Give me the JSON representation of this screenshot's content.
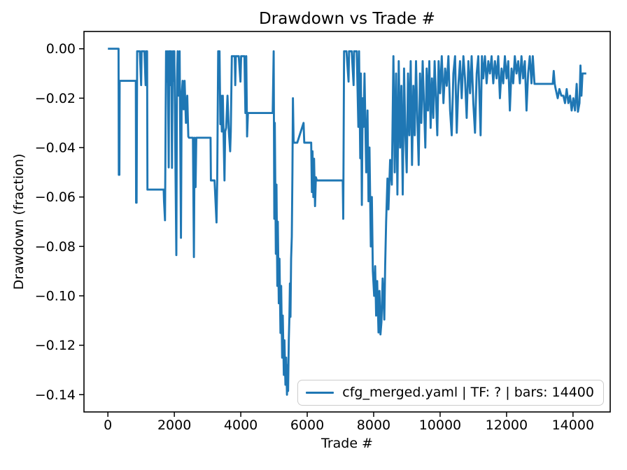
{
  "window": {
    "background": "#ffffff"
  },
  "chart_data": {
    "type": "line",
    "title": "Drawdown vs Trade #",
    "xlabel": "Trade #",
    "ylabel": "Drawdown (fraction)",
    "grid": false,
    "line_color": "#1f77b4",
    "axis_color": "#000000",
    "legend": {
      "position": "lower right",
      "entries": [
        {
          "label": "cfg_merged.yaml | TF: ? | bars: 14400",
          "color": "#1f77b4"
        }
      ]
    },
    "xlim": [
      -720,
      15120
    ],
    "ylim": [
      -0.147,
      0.007
    ],
    "xticks": [
      {
        "value": 0,
        "label": "0"
      },
      {
        "value": 2000,
        "label": "2000"
      },
      {
        "value": 4000,
        "label": "4000"
      },
      {
        "value": 6000,
        "label": "6000"
      },
      {
        "value": 8000,
        "label": "8000"
      },
      {
        "value": 10000,
        "label": "10000"
      },
      {
        "value": 12000,
        "label": "12000"
      },
      {
        "value": 14000,
        "label": "14000"
      }
    ],
    "yticks": [
      {
        "value": 0.0,
        "label": "0.00"
      },
      {
        "value": -0.02,
        "label": "−0.02"
      },
      {
        "value": -0.04,
        "label": "−0.04"
      },
      {
        "value": -0.06,
        "label": "−0.06"
      },
      {
        "value": -0.08,
        "label": "−0.08"
      },
      {
        "value": -0.1,
        "label": "−0.10"
      },
      {
        "value": -0.12,
        "label": "−0.12"
      },
      {
        "value": -0.14,
        "label": "−0.14"
      }
    ],
    "series": [
      {
        "name": "cfg_merged.yaml | TF: ? | bars: 14400",
        "color": "#1f77b4",
        "points": [
          [
            0,
            0
          ],
          [
            320,
            0
          ],
          [
            330,
            -0.051
          ],
          [
            345,
            -0.051
          ],
          [
            355,
            -0.013
          ],
          [
            600,
            -0.013
          ],
          [
            840,
            -0.013
          ],
          [
            850,
            -0.0623
          ],
          [
            865,
            -0.0623
          ],
          [
            880,
            -0.001
          ],
          [
            960,
            -0.001
          ],
          [
            1000,
            -0.0147
          ],
          [
            1015,
            -0.001
          ],
          [
            1100,
            -0.001
          ],
          [
            1135,
            -0.0147
          ],
          [
            1150,
            -0.001
          ],
          [
            1180,
            -0.001
          ],
          [
            1190,
            -0.057
          ],
          [
            1450,
            -0.057
          ],
          [
            1680,
            -0.057
          ],
          [
            1690,
            -0.0617
          ],
          [
            1720,
            -0.0694
          ],
          [
            1750,
            -0.001
          ],
          [
            1780,
            -0.0133
          ],
          [
            1800,
            -0.001
          ],
          [
            1830,
            -0.048
          ],
          [
            1845,
            -0.001
          ],
          [
            1870,
            -0.001
          ],
          [
            1890,
            -0.0147
          ],
          [
            1905,
            -0.001
          ],
          [
            1930,
            -0.0482
          ],
          [
            1945,
            -0.013
          ],
          [
            1960,
            -0.001
          ],
          [
            1980,
            -0.013
          ],
          [
            2000,
            -0.001
          ],
          [
            2060,
            -0.0835
          ],
          [
            2080,
            -0.013
          ],
          [
            2100,
            -0.001
          ],
          [
            2130,
            -0.019
          ],
          [
            2160,
            -0.001
          ],
          [
            2200,
            -0.0765
          ],
          [
            2220,
            -0.019
          ],
          [
            2250,
            -0.013
          ],
          [
            2280,
            -0.0245
          ],
          [
            2310,
            -0.013
          ],
          [
            2350,
            -0.03
          ],
          [
            2390,
            -0.019
          ],
          [
            2420,
            -0.0355
          ],
          [
            2440,
            -0.036
          ],
          [
            2520,
            -0.036
          ],
          [
            2560,
            -0.036
          ],
          [
            2590,
            -0.0843
          ],
          [
            2610,
            -0.036
          ],
          [
            2640,
            -0.056
          ],
          [
            2660,
            -0.036
          ],
          [
            2750,
            -0.036
          ],
          [
            3090,
            -0.036
          ],
          [
            3100,
            -0.0533
          ],
          [
            3210,
            -0.0533
          ],
          [
            3270,
            -0.0703
          ],
          [
            3290,
            -0.0533
          ],
          [
            3320,
            -0.001
          ],
          [
            3360,
            -0.001
          ],
          [
            3385,
            -0.0305
          ],
          [
            3405,
            -0.019
          ],
          [
            3430,
            -0.0335
          ],
          [
            3460,
            -0.019
          ],
          [
            3510,
            -0.0533
          ],
          [
            3530,
            -0.0335
          ],
          [
            3560,
            -0.032
          ],
          [
            3600,
            -0.019
          ],
          [
            3640,
            -0.0335
          ],
          [
            3680,
            -0.0415
          ],
          [
            3700,
            -0.0335
          ],
          [
            3730,
            -0.003
          ],
          [
            3820,
            -0.003
          ],
          [
            3835,
            -0.0147
          ],
          [
            3850,
            -0.003
          ],
          [
            3940,
            -0.003
          ],
          [
            3990,
            -0.0133
          ],
          [
            4010,
            -0.003
          ],
          [
            4080,
            -0.003
          ],
          [
            4110,
            -0.003
          ],
          [
            4140,
            -0.026
          ],
          [
            4165,
            -0.003
          ],
          [
            4190,
            -0.0355
          ],
          [
            4215,
            -0.026
          ],
          [
            4400,
            -0.026
          ],
          [
            4700,
            -0.026
          ],
          [
            4960,
            -0.026
          ],
          [
            4990,
            -0.001
          ],
          [
            5010,
            -0.0688
          ],
          [
            5025,
            -0.03
          ],
          [
            5055,
            -0.083
          ],
          [
            5075,
            -0.055
          ],
          [
            5100,
            -0.096
          ],
          [
            5115,
            -0.07
          ],
          [
            5145,
            -0.103
          ],
          [
            5165,
            -0.085
          ],
          [
            5195,
            -0.115
          ],
          [
            5215,
            -0.096
          ],
          [
            5245,
            -0.125
          ],
          [
            5265,
            -0.108
          ],
          [
            5295,
            -0.132
          ],
          [
            5315,
            -0.118
          ],
          [
            5345,
            -0.136
          ],
          [
            5365,
            -0.125
          ],
          [
            5390,
            -0.14
          ],
          [
            5405,
            -0.128
          ],
          [
            5425,
            -0.1385
          ],
          [
            5445,
            -0.118
          ],
          [
            5465,
            -0.108
          ],
          [
            5480,
            -0.095
          ],
          [
            5495,
            -0.1085
          ],
          [
            5515,
            -0.085
          ],
          [
            5535,
            -0.076
          ],
          [
            5555,
            -0.05
          ],
          [
            5570,
            -0.02
          ],
          [
            5590,
            -0.038
          ],
          [
            5700,
            -0.038
          ],
          [
            5890,
            -0.03
          ],
          [
            5910,
            -0.038
          ],
          [
            6080,
            -0.038
          ],
          [
            6120,
            -0.038
          ],
          [
            6140,
            -0.058
          ],
          [
            6160,
            -0.0415
          ],
          [
            6185,
            -0.06
          ],
          [
            6205,
            -0.0445
          ],
          [
            6235,
            -0.0637
          ],
          [
            6260,
            -0.052
          ],
          [
            6290,
            -0.0533
          ],
          [
            6500,
            -0.0533
          ],
          [
            6800,
            -0.0533
          ],
          [
            7070,
            -0.0533
          ],
          [
            7085,
            -0.0688
          ],
          [
            7110,
            -0.001
          ],
          [
            7180,
            -0.001
          ],
          [
            7245,
            -0.0133
          ],
          [
            7260,
            -0.001
          ],
          [
            7340,
            -0.001
          ],
          [
            7395,
            -0.0147
          ],
          [
            7410,
            -0.001
          ],
          [
            7490,
            -0.001
          ],
          [
            7540,
            -0.0316
          ],
          [
            7560,
            -0.001
          ],
          [
            7595,
            -0.0443
          ],
          [
            7615,
            -0.01
          ],
          [
            7645,
            -0.0632
          ],
          [
            7670,
            -0.02
          ],
          [
            7695,
            -0.0316
          ],
          [
            7725,
            -0.01
          ],
          [
            7775,
            -0.05
          ],
          [
            7815,
            -0.025
          ],
          [
            7845,
            -0.0617
          ],
          [
            7875,
            -0.04
          ],
          [
            7915,
            -0.08
          ],
          [
            7945,
            -0.06
          ],
          [
            7975,
            -0.09
          ],
          [
            8015,
            -0.1
          ],
          [
            8045,
            -0.088
          ],
          [
            8075,
            -0.108
          ],
          [
            8105,
            -0.094
          ],
          [
            8145,
            -0.1148
          ],
          [
            8175,
            -0.098
          ],
          [
            8205,
            -0.1156
          ],
          [
            8235,
            -0.1105
          ],
          [
            8270,
            -0.093
          ],
          [
            8320,
            -0.1096
          ],
          [
            8345,
            -0.088
          ],
          [
            8375,
            -0.07
          ],
          [
            8415,
            -0.0525
          ],
          [
            8445,
            -0.065
          ],
          [
            8495,
            -0.045
          ],
          [
            8545,
            -0.055
          ],
          [
            8595,
            -0.003
          ],
          [
            8635,
            -0.05
          ],
          [
            8675,
            -0.01
          ],
          [
            8715,
            -0.059
          ],
          [
            8755,
            -0.005
          ],
          [
            8795,
            -0.04
          ],
          [
            8835,
            -0.015
          ],
          [
            8875,
            -0.059
          ],
          [
            8915,
            -0.008
          ],
          [
            8955,
            -0.035
          ],
          [
            8995,
            -0.05
          ],
          [
            9035,
            -0.01
          ],
          [
            9075,
            -0.035
          ],
          [
            9115,
            -0.005
          ],
          [
            9155,
            -0.047
          ],
          [
            9195,
            -0.015
          ],
          [
            9235,
            -0.035
          ],
          [
            9275,
            -0.005
          ],
          [
            9315,
            -0.028
          ],
          [
            9355,
            -0.047
          ],
          [
            9395,
            -0.01
          ],
          [
            9435,
            -0.03
          ],
          [
            9475,
            -0.005
          ],
          [
            9515,
            -0.022
          ],
          [
            9555,
            -0.04
          ],
          [
            9595,
            -0.008
          ],
          [
            9635,
            -0.025
          ],
          [
            9675,
            -0.005
          ],
          [
            9715,
            -0.032
          ],
          [
            9755,
            -0.012
          ],
          [
            9795,
            -0.028
          ],
          [
            9835,
            -0.005
          ],
          [
            9875,
            -0.02
          ],
          [
            9915,
            -0.035
          ],
          [
            9955,
            -0.005
          ],
          [
            10000,
            -0.018
          ],
          [
            10050,
            -0.003
          ],
          [
            10100,
            -0.022
          ],
          [
            10150,
            -0.008
          ],
          [
            10200,
            -0.015
          ],
          [
            10250,
            -0.003
          ],
          [
            10300,
            -0.025
          ],
          [
            10350,
            -0.035
          ],
          [
            10400,
            -0.01
          ],
          [
            10450,
            -0.003
          ],
          [
            10500,
            -0.034
          ],
          [
            10550,
            -0.015
          ],
          [
            10600,
            -0.005
          ],
          [
            10650,
            -0.02
          ],
          [
            10700,
            -0.003
          ],
          [
            10750,
            -0.012
          ],
          [
            10800,
            -0.028
          ],
          [
            10850,
            -0.005
          ],
          [
            10900,
            -0.018
          ],
          [
            10950,
            -0.003
          ],
          [
            11000,
            -0.022
          ],
          [
            11050,
            -0.034
          ],
          [
            11100,
            -0.01
          ],
          [
            11150,
            -0.003
          ],
          [
            11220,
            -0.035
          ],
          [
            11260,
            -0.003
          ],
          [
            11300,
            -0.012
          ],
          [
            11350,
            -0.003
          ],
          [
            11400,
            -0.014
          ],
          [
            11450,
            -0.005
          ],
          [
            11500,
            -0.01
          ],
          [
            11550,
            -0.003
          ],
          [
            11600,
            -0.014
          ],
          [
            11650,
            -0.005
          ],
          [
            11700,
            -0.012
          ],
          [
            11750,
            -0.003
          ],
          [
            11800,
            -0.02
          ],
          [
            11850,
            -0.008
          ],
          [
            11900,
            -0.014
          ],
          [
            11950,
            -0.003
          ],
          [
            12000,
            -0.012
          ],
          [
            12050,
            -0.005
          ],
          [
            12100,
            -0.025
          ],
          [
            12150,
            -0.008
          ],
          [
            12200,
            -0.014
          ],
          [
            12250,
            -0.003
          ],
          [
            12300,
            -0.01
          ],
          [
            12350,
            -0.005
          ],
          [
            12400,
            -0.014
          ],
          [
            12450,
            -0.003
          ],
          [
            12500,
            -0.012
          ],
          [
            12550,
            -0.005
          ],
          [
            12600,
            -0.025
          ],
          [
            12650,
            -0.01
          ],
          [
            12700,
            -0.003
          ],
          [
            12750,
            -0.014
          ],
          [
            12790,
            -0.003
          ],
          [
            12840,
            -0.0142
          ],
          [
            13000,
            -0.0142
          ],
          [
            13200,
            -0.0142
          ],
          [
            13390,
            -0.0142
          ],
          [
            13420,
            -0.009
          ],
          [
            13450,
            -0.0142
          ],
          [
            13480,
            -0.0163
          ],
          [
            13540,
            -0.02
          ],
          [
            13590,
            -0.0163
          ],
          [
            13650,
            -0.019
          ],
          [
            13710,
            -0.019
          ],
          [
            13760,
            -0.022
          ],
          [
            13810,
            -0.0163
          ],
          [
            13860,
            -0.022
          ],
          [
            13910,
            -0.019
          ],
          [
            13960,
            -0.025
          ],
          [
            14010,
            -0.02
          ],
          [
            14060,
            -0.025
          ],
          [
            14110,
            -0.0142
          ],
          [
            14150,
            -0.0255
          ],
          [
            14195,
            -0.022
          ],
          [
            14225,
            -0.0068
          ],
          [
            14255,
            -0.019
          ],
          [
            14285,
            -0.01
          ],
          [
            14400,
            -0.01
          ]
        ]
      }
    ]
  }
}
